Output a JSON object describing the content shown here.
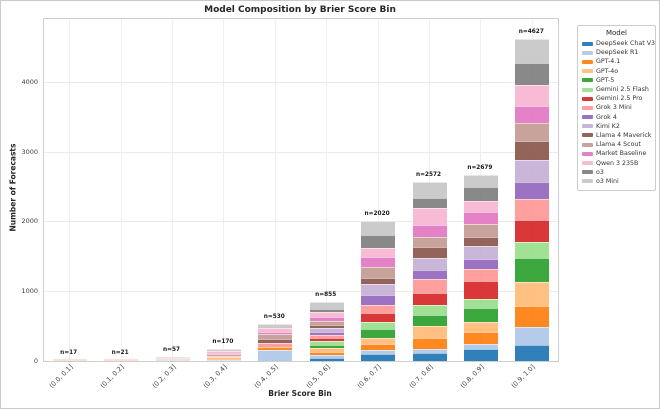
{
  "title": "Model Composition by Brier Score Bin",
  "chart_data": {
    "type": "bar",
    "stacked": true,
    "title": "Model Composition by Brier Score Bin",
    "xlabel": "Brier Score Bin",
    "ylabel": "Number of Forecasts",
    "ylim": [
      0,
      4920
    ],
    "yticks": [
      0,
      1000,
      2000,
      3000,
      4000
    ],
    "grid": true,
    "legend_title": "Model",
    "legend_position": "outside upper right",
    "categories": [
      "(0.0, 0.1]",
      "(0.1, 0.2]",
      "(0.2, 0.3]",
      "(0.3, 0.4]",
      "(0.4, 0.5]",
      "(0.5, 0.6]",
      "(0.6, 0.7]",
      "(0.7, 0.8]",
      "(0.8, 0.9]",
      "(0.9, 1.0]"
    ],
    "bar_totals": [
      17,
      21,
      57,
      170,
      530,
      855,
      2020,
      2572,
      2679,
      4627
    ],
    "bar_total_labels": [
      "n=17",
      "n=21",
      "n=57",
      "n=170",
      "n=530",
      "n=855",
      "n=2020",
      "n=2572",
      "n=2679",
      "n=4627"
    ],
    "series": [
      {
        "name": "DeepSeek Chat V3",
        "color": "#1f77b4",
        "values": [
          0,
          0,
          0,
          0,
          0,
          43,
          103,
          111,
          170,
          234
        ]
      },
      {
        "name": "DeepSeek R1",
        "color": "#aec7e8",
        "values": [
          0,
          0,
          10,
          15,
          165,
          43,
          55,
          65,
          82,
          250
        ]
      },
      {
        "name": "GPT-4.1",
        "color": "#ff7f0e",
        "values": [
          0,
          0,
          0,
          10,
          30,
          50,
          83,
          160,
          159,
          303
        ]
      },
      {
        "name": "GPT-4o",
        "color": "#ffbb78",
        "values": [
          9,
          12,
          20,
          30,
          0,
          50,
          96,
          166,
          144,
          347
        ]
      },
      {
        "name": "GPT-5",
        "color": "#2ca02c",
        "values": [
          0,
          0,
          0,
          0,
          0,
          43,
          124,
          163,
          202,
          346
        ]
      },
      {
        "name": "Gemini 2.5 Flash",
        "color": "#98df8a",
        "values": [
          0,
          0,
          0,
          0,
          0,
          58,
          96,
          145,
          134,
          231
        ]
      },
      {
        "name": "Gemini 2.5 Pro",
        "color": "#d62728",
        "values": [
          0,
          0,
          0,
          0,
          0,
          43,
          137,
          174,
          265,
          313
        ]
      },
      {
        "name": "Grok 3 Mini",
        "color": "#ff9896",
        "values": [
          0,
          0,
          0,
          20,
          60,
          50,
          114,
          195,
          167,
          312
        ]
      },
      {
        "name": "Grok 4",
        "color": "#9467bd",
        "values": [
          0,
          0,
          0,
          0,
          0,
          43,
          137,
          130,
          144,
          241
        ]
      },
      {
        "name": "Kimi K2",
        "color": "#c5b0d5",
        "values": [
          0,
          0,
          0,
          0,
          0,
          58,
          161,
          174,
          193,
          313
        ]
      },
      {
        "name": "Llama 4 Maverick",
        "color": "#8c564b",
        "values": [
          0,
          0,
          0,
          0,
          60,
          43,
          92,
          153,
          120,
          279
        ]
      },
      {
        "name": "Llama 4 Scout",
        "color": "#c49c94",
        "values": [
          0,
          0,
          0,
          25,
          70,
          58,
          159,
          153,
          192,
          250
        ]
      },
      {
        "name": "Market Baseline",
        "color": "#e377c2",
        "values": [
          0,
          0,
          0,
          15,
          30,
          58,
          137,
          174,
          169,
          251
        ]
      },
      {
        "name": "Qwen 3 235B",
        "color": "#f7b6d2",
        "values": [
          0,
          9,
          15,
          30,
          55,
          72,
          137,
          239,
          169,
          303
        ]
      },
      {
        "name": "o3",
        "color": "#7f7f7f",
        "values": [
          0,
          0,
          0,
          0,
          15,
          33,
          184,
          139,
          192,
          314
        ]
      },
      {
        "name": "o3 Mini",
        "color": "#c7c7c7",
        "values": [
          8,
          0,
          12,
          25,
          45,
          110,
          205,
          231,
          177,
          340
        ]
      }
    ]
  }
}
